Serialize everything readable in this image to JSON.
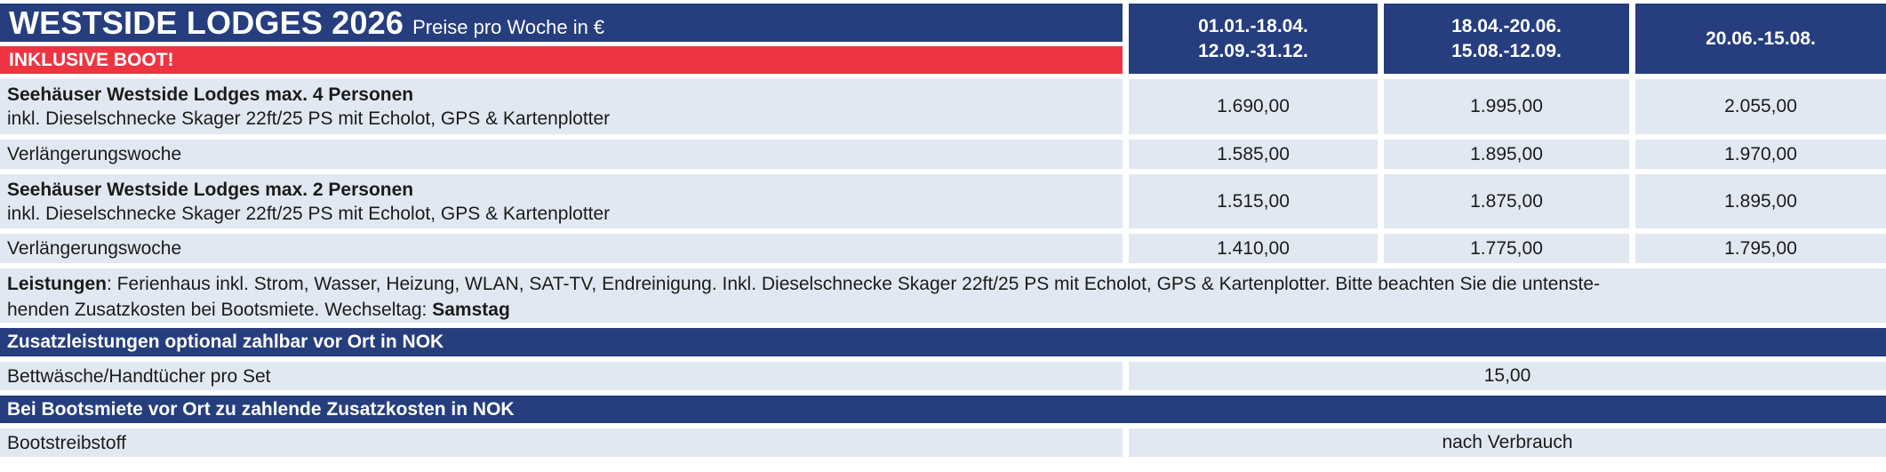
{
  "header": {
    "title": "WESTSIDE LODGES 2026",
    "subtitle": "Preise pro Woche in €",
    "banner": "INKLUSIVE BOOT!",
    "seasons": [
      {
        "line1": "01.01.-18.04.",
        "line2": "12.09.-31.12."
      },
      {
        "line1": "18.04.-20.06.",
        "line2": "15.08.-12.09."
      },
      {
        "line1": "20.06.-15.08."
      }
    ]
  },
  "price_rows": [
    {
      "title": "Seehäuser Westside Lodges max. 4 Personen",
      "subtitle": "inkl. Dieselschnecke Skager 22ft/25 PS mit Echolot, GPS & Kartenplotter",
      "prices": [
        "1.690,00",
        "1.995,00",
        "2.055,00"
      ]
    },
    {
      "title": "Verlängerungswoche",
      "prices": [
        "1.585,00",
        "1.895,00",
        "1.970,00"
      ]
    },
    {
      "title": "Seehäuser Westside Lodges max. 2 Personen",
      "subtitle": "inkl. Dieselschnecke Skager 22ft/25 PS mit Echolot, GPS & Kartenplotter",
      "prices": [
        "1.515,00",
        "1.875,00",
        "1.895,00"
      ]
    },
    {
      "title": "Verlängerungswoche",
      "prices": [
        "1.410,00",
        "1.775,00",
        "1.795,00"
      ]
    }
  ],
  "leistungen": {
    "line1_bold": "Leistungen",
    "line1_rest": ": Ferienhaus inkl. Strom, Wasser, Heizung, WLAN, SAT-TV, Endreinigung. Inkl. Dieselschnecke Skager 22ft/25 PS mit Echolot, GPS & Kartenplotter. Bitte beachten Sie die untenste-",
    "line2_rest": "henden Zusatzkosten bei Bootsmiete. Wechseltag: ",
    "line2_bold": "Samstag"
  },
  "sections": [
    {
      "heading": "Zusatzleistungen optional zahlbar vor Ort in NOK",
      "row_label": "Bettwäsche/Handtücher pro Set",
      "row_value": "15,00"
    },
    {
      "heading": "Bei Bootsmiete vor Ort zu zahlende Zusatzkosten in NOK",
      "row_label": "Bootstreibstoff",
      "row_value": "nach Verbrauch"
    }
  ],
  "colors": {
    "navy": "#263E7E",
    "red": "#EE3442",
    "rowbg": "#E2E8F1",
    "text": "#1B1B1B"
  }
}
